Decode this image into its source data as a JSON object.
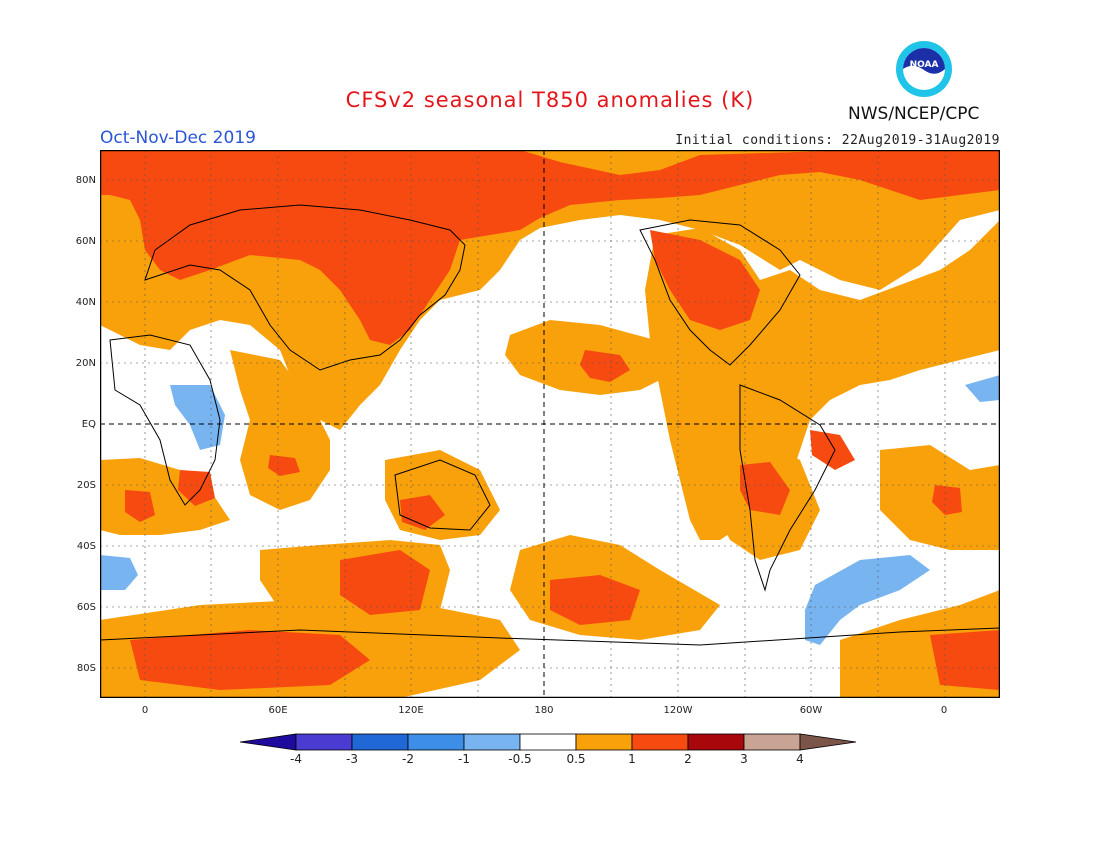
{
  "header": {
    "title": "CFSv2 seasonal T850 anomalies (K)",
    "season": "Oct-Nov-Dec 2019",
    "initial_conditions": "Initial conditions: 22Aug2019-31Aug2019",
    "agency": "NWS/NCEP/CPC",
    "logo_text": "NOAA"
  },
  "map": {
    "lat_labels": [
      "80N",
      "60N",
      "40N",
      "20N",
      "EQ",
      "20S",
      "40S",
      "60S",
      "80S"
    ],
    "lon_labels": [
      "0",
      "60E",
      "120E",
      "180",
      "120W",
      "60W",
      "0"
    ]
  },
  "colorbar": {
    "labels": [
      "-4",
      "-3",
      "-2",
      "-1",
      "-0.5",
      "0.5",
      "1",
      "2",
      "3",
      "4"
    ],
    "colors": [
      "#1e0b9e",
      "#4a3bd1",
      "#1f68d6",
      "#3d8ee6",
      "#78b4f0",
      "#ffffff",
      "#f9a10a",
      "#f74a10",
      "#a8070b",
      "#c9a393",
      "#7b5548"
    ]
  },
  "colors": {
    "light_warm": "#f9a10a",
    "warm": "#f74a10",
    "cool": "#78b4f0",
    "title": "#e4161b",
    "season": "#2a55d6"
  }
}
